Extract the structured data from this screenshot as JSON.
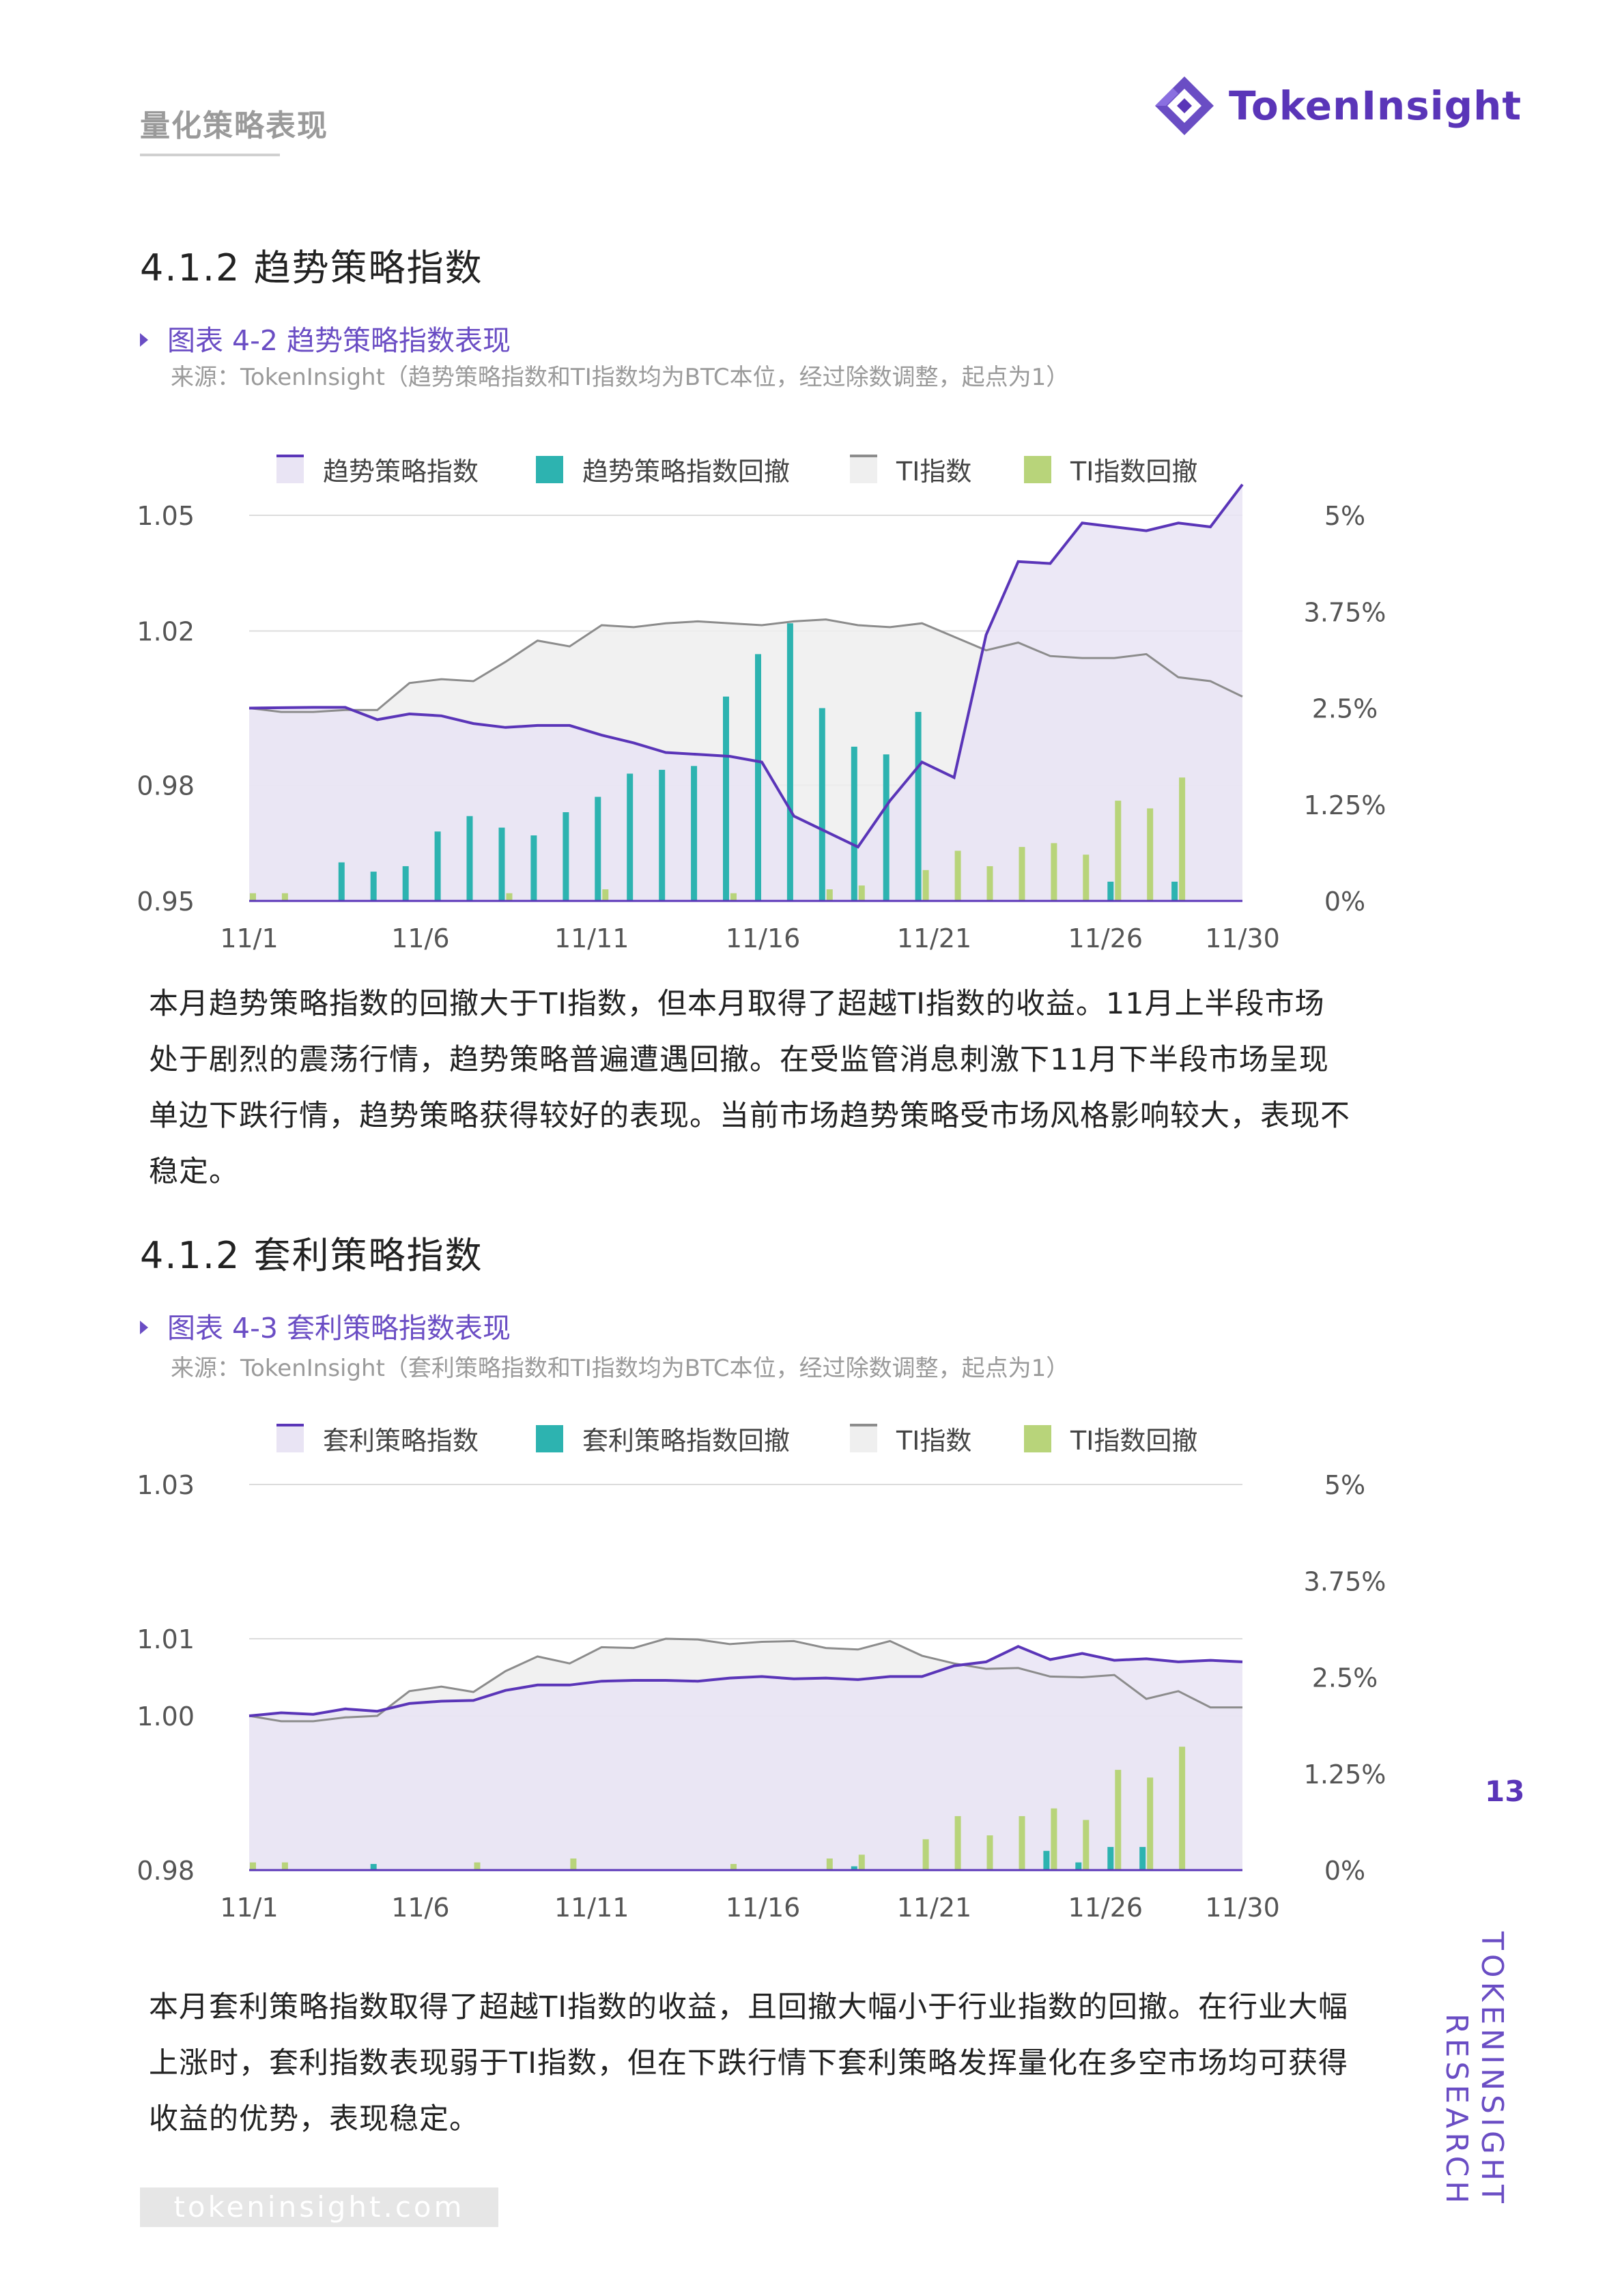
{
  "header": {
    "section": "量化策略表现",
    "brand": "TokenInsight"
  },
  "section1": {
    "title": "4.1.2 趋势策略指数"
  },
  "figure1": {
    "title": "图表 4-2 趋势策略指数表现",
    "source": "来源：TokenInsight（趋势策略指数和TI指数均为BTC本位，经过除数调整，起点为1）"
  },
  "para1": "本月趋势策略指数的回撤大于TI指数，但本月取得了超越TI指数的收益。11月上半段市场处于剧烈的震荡行情，趋势策略普遍遭遇回撤。在受监管消息刺激下11月下半段市场呈现单边下跌行情，趋势策略获得较好的表现。当前市场趋势策略受市场风格影响较大，表现不稳定。",
  "section2": {
    "title": "4.1.2 套利策略指数"
  },
  "figure2": {
    "title": "图表 4-3 套利策略指数表现",
    "source": "来源：TokenInsight（套利策略指数和TI指数均为BTC本位，经过除数调整，起点为1）"
  },
  "para2": "本月套利策略指数取得了超越TI指数的收益，且回撤大幅小于行业指数的回撤。在行业大幅上涨时，套利指数表现弱于TI指数，但在下跌行情下套利策略发挥量化在多空市场均可获得收益的优势，表现稳定。",
  "page_number": "13",
  "side": {
    "line1": "TOKENINSIGHT",
    "line2": "RESEARCH"
  },
  "footer": {
    "url": "tokeninsight.com"
  },
  "colors": {
    "purple": "#5a35b8",
    "teal": "#2db3b0",
    "gray": "#8c8c8c",
    "green": "#b8d47a",
    "purple_fill": "#e9e4f4",
    "gray_fill": "#efefef"
  },
  "chart_data": [
    {
      "type": "line",
      "xticks": [
        "11/1",
        "11/6",
        "11/11",
        "11/16",
        "11/21",
        "11/26",
        "11/30"
      ],
      "yticks_left": [
        "1.05",
        "1.02",
        "0.98",
        "0.95"
      ],
      "yticks_right": [
        "5%",
        "3.75%",
        "2.5%",
        "1.25%",
        "0%"
      ],
      "ylim_left": [
        0.95,
        1.05
      ],
      "ylim_right": [
        0,
        5
      ],
      "legend": [
        "趋势策略指数",
        "趋势策略指数回撤",
        "TI指数",
        "TI指数回撤"
      ],
      "series": [
        {
          "name": "趋势策略指数",
          "kind": "area",
          "color": "#5a35b8",
          "fill": "#e9e4f4",
          "values": [
            1.0,
            1.0001,
            1.0002,
            1.0002,
            0.997,
            0.9985,
            0.998,
            0.996,
            0.995,
            0.9955,
            0.9955,
            0.993,
            0.991,
            0.9885,
            0.988,
            0.9875,
            0.986,
            0.972,
            0.968,
            0.964,
            0.976,
            0.986,
            0.982,
            1.019,
            1.038,
            1.0375,
            1.048,
            1.047,
            1.046,
            1.048,
            1.047,
            1.058
          ]
        },
        {
          "name": "TI指数",
          "kind": "area",
          "color": "#8c8c8c",
          "fill": "#efefef",
          "values": [
            1.0,
            0.999,
            0.999,
            0.9995,
            0.9995,
            1.0065,
            1.0075,
            1.007,
            1.012,
            1.0175,
            1.016,
            1.0215,
            1.021,
            1.022,
            1.0225,
            1.022,
            1.0215,
            1.0225,
            1.023,
            1.0215,
            1.021,
            1.022,
            1.0185,
            1.015,
            1.017,
            1.0135,
            1.013,
            1.013,
            1.014,
            1.008,
            1.007,
            1.003
          ]
        },
        {
          "name": "趋势策略指数回撤",
          "kind": "bar",
          "color": "#2db3b0",
          "values": [
            0,
            0,
            0,
            0.5,
            0.38,
            0.45,
            0.9,
            1.1,
            0.95,
            0.85,
            1.15,
            1.35,
            1.65,
            1.7,
            1.75,
            2.65,
            3.2,
            3.6,
            2.5,
            2.0,
            1.9,
            2.45,
            0,
            0,
            0,
            0,
            0,
            0.25,
            0,
            0.25,
            0,
            0
          ]
        },
        {
          "name": "TI指数回撤",
          "kind": "bar",
          "color": "#b8d47a",
          "values": [
            0.1,
            0.1,
            0,
            0,
            0,
            0,
            0,
            0,
            0.1,
            0,
            0,
            0.15,
            0,
            0,
            0,
            0.1,
            0,
            0,
            0.15,
            0.2,
            0,
            0.4,
            0.65,
            0.45,
            0.7,
            0.75,
            0.6,
            1.3,
            1.2,
            1.6,
            0,
            0
          ]
        }
      ]
    },
    {
      "type": "line",
      "xticks": [
        "11/1",
        "11/6",
        "11/11",
        "11/16",
        "11/21",
        "11/26",
        "11/30"
      ],
      "yticks_left": [
        "1.03",
        "1.01",
        "1.00",
        "0.98"
      ],
      "yticks_right": [
        "5%",
        "3.75%",
        "2.5%",
        "1.25%",
        "0%"
      ],
      "ylim_left": [
        0.98,
        1.03
      ],
      "ylim_right": [
        0,
        5
      ],
      "legend": [
        "套利策略指数",
        "套利策略指数回撤",
        "TI指数",
        "TI指数回撤"
      ],
      "series": [
        {
          "name": "套利策略指数",
          "kind": "area",
          "color": "#5a35b8",
          "fill": "#e9e4f4",
          "values": [
            1.0,
            1.0004,
            1.0002,
            1.0009,
            1.0006,
            1.0016,
            1.0019,
            1.002,
            1.0033,
            1.004,
            1.004,
            1.0045,
            1.0046,
            1.0046,
            1.0045,
            1.0049,
            1.0051,
            1.0048,
            1.0049,
            1.0047,
            1.0051,
            1.0051,
            1.0065,
            1.007,
            1.009,
            1.0073,
            1.0081,
            1.0072,
            1.0074,
            1.007,
            1.0072,
            1.007
          ]
        },
        {
          "name": "TI指数",
          "kind": "area",
          "color": "#8c8c8c",
          "fill": "#efefef",
          "values": [
            1.0,
            0.9993,
            0.9993,
            0.9998,
            1.0,
            1.0032,
            1.0038,
            1.0031,
            1.0058,
            1.0077,
            1.0068,
            1.0089,
            1.0088,
            1.01,
            1.0099,
            1.0093,
            1.0096,
            1.0097,
            1.0088,
            1.0086,
            1.0097,
            1.0078,
            1.0068,
            1.0061,
            1.0062,
            1.0051,
            1.005,
            1.0053,
            1.0022,
            1.0032,
            1.0011,
            1.0011
          ]
        },
        {
          "name": "套利策略指数回撤",
          "kind": "bar",
          "color": "#2db3b0",
          "values": [
            0,
            0,
            0,
            0,
            0.08,
            0,
            0,
            0,
            0,
            0,
            0,
            0,
            0,
            0,
            0,
            0,
            0,
            0,
            0,
            0.05,
            0,
            0,
            0,
            0,
            0,
            0.25,
            0.1,
            0.3,
            0.3,
            0,
            0,
            0
          ]
        },
        {
          "name": "TI指数回撤",
          "kind": "bar",
          "color": "#b8d47a",
          "values": [
            0.1,
            0.1,
            0,
            0,
            0,
            0,
            0,
            0.1,
            0,
            0,
            0.15,
            0,
            0,
            0,
            0,
            0.08,
            0,
            0,
            0.15,
            0.2,
            0,
            0.4,
            0.7,
            0.45,
            0.7,
            0.8,
            0.65,
            1.3,
            1.2,
            1.6,
            0,
            0
          ]
        }
      ]
    }
  ]
}
